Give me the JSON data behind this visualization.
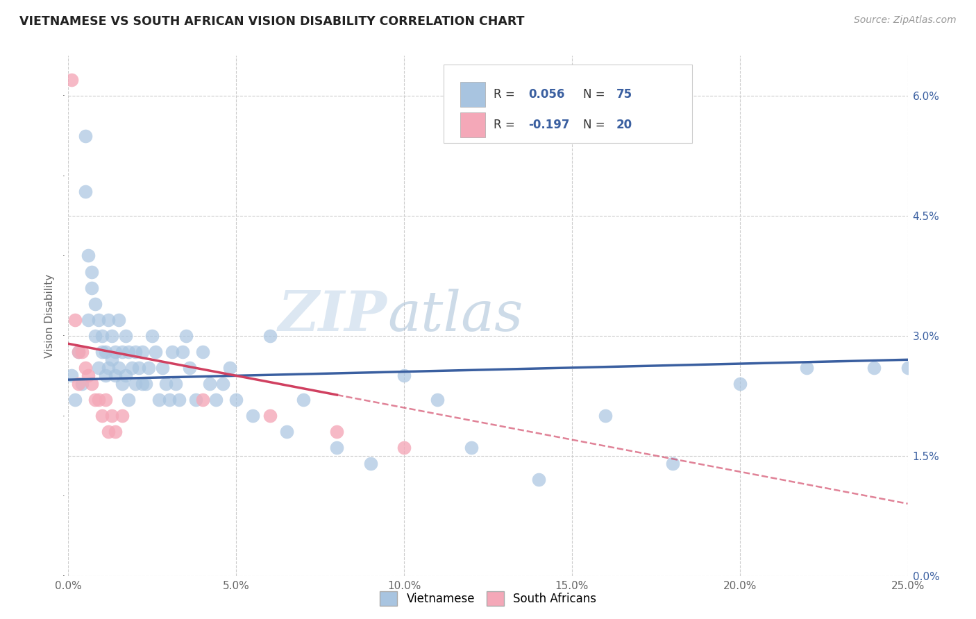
{
  "title": "VIETNAMESE VS SOUTH AFRICAN VISION DISABILITY CORRELATION CHART",
  "source": "Source: ZipAtlas.com",
  "ylabel": "Vision Disability",
  "xlim": [
    0.0,
    0.25
  ],
  "ylim": [
    0.0,
    0.065
  ],
  "xticks": [
    0.0,
    0.05,
    0.1,
    0.15,
    0.2,
    0.25
  ],
  "xticklabels": [
    "0.0%",
    "5.0%",
    "10.0%",
    "15.0%",
    "20.0%",
    "25.0%"
  ],
  "yticks_right": [
    0.0,
    0.015,
    0.03,
    0.045,
    0.06
  ],
  "yticklabels_right": [
    "0.0%",
    "1.5%",
    "3.0%",
    "4.5%",
    "6.0%"
  ],
  "color_vietnamese": "#a8c4e0",
  "color_sa": "#f4a8b8",
  "color_line_vietnamese": "#3a5fa0",
  "color_line_sa": "#d04060",
  "background_color": "#ffffff",
  "grid_color": "#cccccc",
  "viet_x": [
    0.001,
    0.002,
    0.003,
    0.004,
    0.005,
    0.005,
    0.006,
    0.006,
    0.007,
    0.007,
    0.008,
    0.008,
    0.009,
    0.009,
    0.01,
    0.01,
    0.011,
    0.011,
    0.012,
    0.012,
    0.013,
    0.013,
    0.014,
    0.014,
    0.015,
    0.015,
    0.016,
    0.016,
    0.017,
    0.017,
    0.018,
    0.018,
    0.019,
    0.02,
    0.02,
    0.021,
    0.022,
    0.022,
    0.023,
    0.024,
    0.025,
    0.026,
    0.027,
    0.028,
    0.029,
    0.03,
    0.031,
    0.032,
    0.033,
    0.034,
    0.035,
    0.036,
    0.038,
    0.04,
    0.042,
    0.044,
    0.046,
    0.048,
    0.05,
    0.055,
    0.06,
    0.065,
    0.07,
    0.08,
    0.09,
    0.1,
    0.11,
    0.12,
    0.14,
    0.16,
    0.18,
    0.2,
    0.22,
    0.24,
    0.25
  ],
  "viet_y": [
    0.025,
    0.022,
    0.028,
    0.024,
    0.055,
    0.048,
    0.04,
    0.032,
    0.036,
    0.038,
    0.03,
    0.034,
    0.026,
    0.032,
    0.028,
    0.03,
    0.025,
    0.028,
    0.026,
    0.032,
    0.03,
    0.027,
    0.028,
    0.025,
    0.032,
    0.026,
    0.024,
    0.028,
    0.03,
    0.025,
    0.022,
    0.028,
    0.026,
    0.024,
    0.028,
    0.026,
    0.024,
    0.028,
    0.024,
    0.026,
    0.03,
    0.028,
    0.022,
    0.026,
    0.024,
    0.022,
    0.028,
    0.024,
    0.022,
    0.028,
    0.03,
    0.026,
    0.022,
    0.028,
    0.024,
    0.022,
    0.024,
    0.026,
    0.022,
    0.02,
    0.03,
    0.018,
    0.022,
    0.016,
    0.014,
    0.025,
    0.022,
    0.016,
    0.012,
    0.02,
    0.014,
    0.024,
    0.026,
    0.026,
    0.026
  ],
  "sa_x": [
    0.001,
    0.002,
    0.003,
    0.003,
    0.004,
    0.005,
    0.006,
    0.007,
    0.008,
    0.009,
    0.01,
    0.011,
    0.012,
    0.013,
    0.014,
    0.016,
    0.04,
    0.06,
    0.08,
    0.1
  ],
  "sa_y": [
    0.062,
    0.032,
    0.028,
    0.024,
    0.028,
    0.026,
    0.025,
    0.024,
    0.022,
    0.022,
    0.02,
    0.022,
    0.018,
    0.02,
    0.018,
    0.02,
    0.022,
    0.02,
    0.018,
    0.016
  ],
  "vline_x0": 0.0,
  "vline_x1": 0.25,
  "sline_solid_x0": 0.0,
  "sline_solid_x1": 0.08,
  "sline_dash_x0": 0.08,
  "sline_dash_x1": 0.25,
  "vline_y0": 0.0245,
  "vline_y1": 0.027,
  "sline_y0": 0.029,
  "sline_y1": 0.009
}
